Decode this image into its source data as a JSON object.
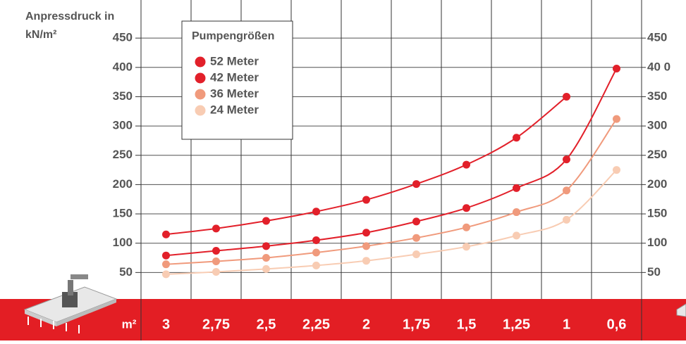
{
  "chart_data": {
    "type": "line",
    "y_label_lines": [
      "Anpressdruck in",
      "kN/m²"
    ],
    "x_label": "m²",
    "legend_title": "Pumpengrößen",
    "categories": [
      "3",
      "2,75",
      "2,5",
      "2,25",
      "2",
      "1,75",
      "1,5",
      "1,25",
      "1",
      "0,6"
    ],
    "series": [
      {
        "name": "52 Meter",
        "color": "#e2202a",
        "values": [
          115,
          125,
          138,
          154,
          174,
          201,
          234,
          280,
          350,
          null
        ]
      },
      {
        "name": "42 Meter",
        "color": "#e2202a",
        "values": [
          79,
          87,
          95,
          105,
          118,
          137,
          160,
          194,
          243,
          398
        ]
      },
      {
        "name": "36 Meter",
        "color": "#f09a7c",
        "values": [
          64,
          69,
          75,
          84,
          95,
          109,
          127,
          153,
          190,
          312
        ]
      },
      {
        "name": "24 Meter",
        "color": "#f8ccb3",
        "values": [
          47,
          51,
          56,
          62,
          70,
          81,
          94,
          113,
          140,
          225
        ]
      }
    ],
    "ylim": [
      0,
      515
    ],
    "yticks": [
      50,
      100,
      150,
      200,
      250,
      300,
      350,
      400,
      450
    ],
    "y2lim": [
      0,
      515
    ],
    "y2ticks": [
      450,
      {
        "value": 400,
        "label": "40 0"
      },
      350,
      300,
      250,
      200,
      150,
      100,
      50
    ],
    "grid": true,
    "band_color": "#e31e24"
  }
}
